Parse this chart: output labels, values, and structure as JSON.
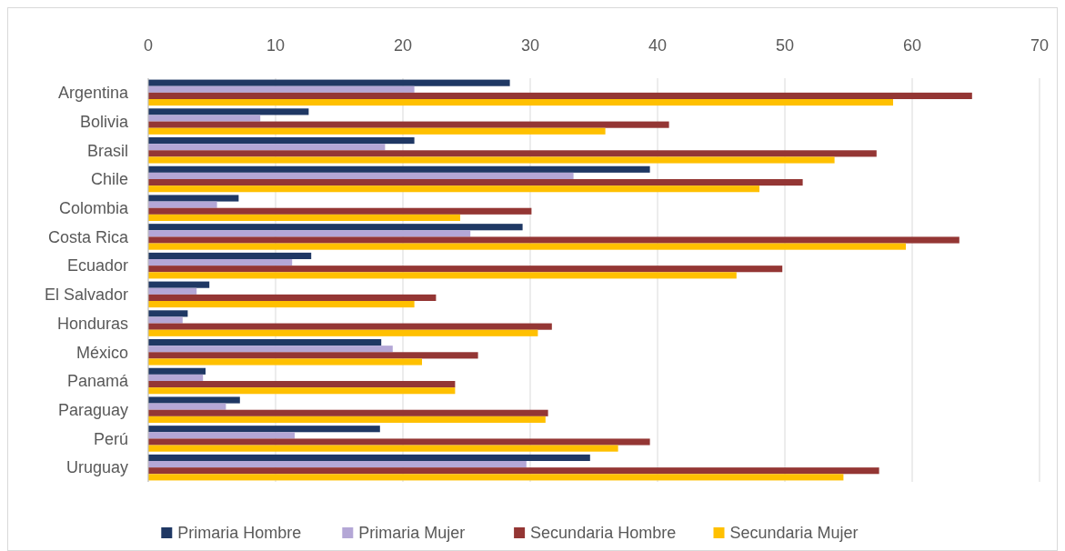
{
  "chart_data": {
    "type": "bar",
    "orientation": "horizontal",
    "categories": [
      "Argentina",
      "Bolivia",
      "Brasil",
      "Chile",
      "Colombia",
      "Costa Rica",
      "Ecuador",
      "El Salvador",
      "Honduras",
      "México",
      "Panamá",
      "Paraguay",
      "Perú",
      "Uruguay"
    ],
    "series": [
      {
        "name": "Primaria Hombre",
        "color": "#1f3864",
        "values": [
          28.4,
          12.6,
          20.9,
          39.4,
          7.1,
          29.4,
          12.8,
          4.8,
          3.1,
          18.3,
          4.5,
          7.2,
          18.2,
          34.7
        ]
      },
      {
        "name": "Primaria Mujer",
        "color": "#b4a7d6",
        "values": [
          20.9,
          8.8,
          18.6,
          33.4,
          5.4,
          25.3,
          11.3,
          3.8,
          2.7,
          19.2,
          4.3,
          6.1,
          11.5,
          29.7
        ]
      },
      {
        "name": "Secundaria Hombre",
        "color": "#943634",
        "values": [
          64.7,
          40.9,
          57.2,
          51.4,
          30.1,
          63.7,
          49.8,
          22.6,
          31.7,
          25.9,
          24.1,
          31.4,
          39.4,
          57.4
        ]
      },
      {
        "name": "Secundaria Mujer",
        "color": "#ffc000",
        "values": [
          58.5,
          35.9,
          53.9,
          48.0,
          24.5,
          59.5,
          46.2,
          20.9,
          30.6,
          21.5,
          24.1,
          31.2,
          36.9,
          54.6
        ]
      }
    ],
    "xlim": [
      0,
      70
    ],
    "xticks": [
      0,
      10,
      20,
      30,
      40,
      50,
      60,
      70
    ],
    "grid": "x",
    "legend": "bottom"
  }
}
